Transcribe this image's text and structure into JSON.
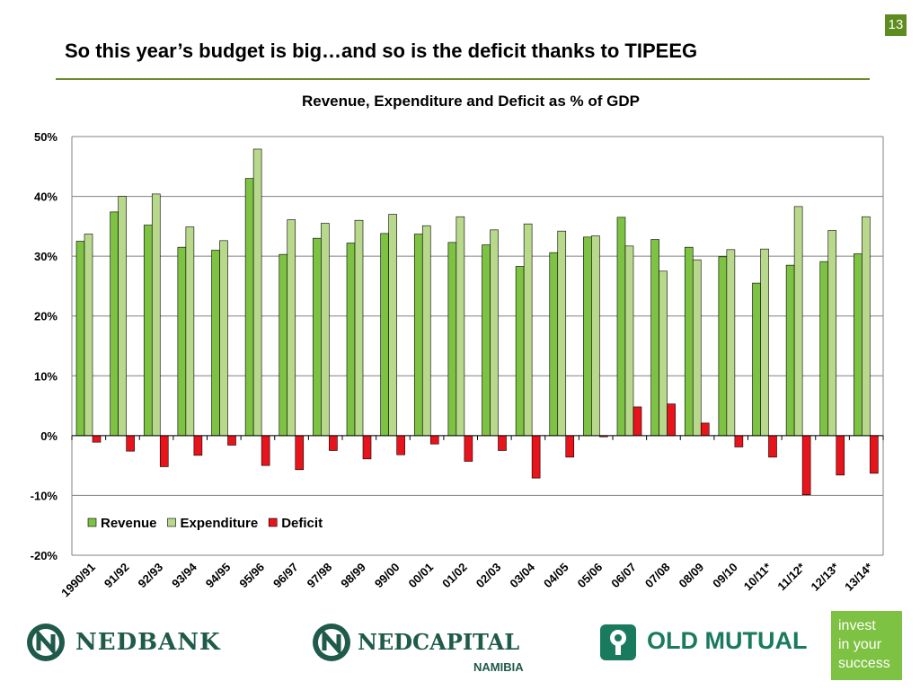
{
  "page": {
    "number": "13",
    "title": "So this year’s budget is big…and so is the deficit thanks to TIPEEG"
  },
  "colors": {
    "revenue": "#7dc242",
    "expenditure": "#b8d88c",
    "deficit": "#e8141b",
    "accent": "#5e8c1e"
  },
  "chart_data": {
    "type": "bar",
    "title": "Revenue, Expenditure and Deficit as % of GDP",
    "xlabel": "",
    "ylabel": "",
    "ylim": [
      -20,
      50
    ],
    "yticks": [
      -20,
      -10,
      0,
      10,
      20,
      30,
      40,
      50
    ],
    "ytick_labels": [
      "-20%",
      "-10%",
      "0%",
      "10%",
      "20%",
      "30%",
      "40%",
      "50%"
    ],
    "grid": true,
    "legend_position": "lower-left",
    "categories": [
      "1990/91",
      "91/92",
      "92/93",
      "93/94",
      "94/95",
      "95/96",
      "96/97",
      "97/98",
      "98/99",
      "99/00",
      "00/01",
      "01/02",
      "02/03",
      "03/04",
      "04/05",
      "05/06",
      "06/07",
      "07/08",
      "08/09",
      "09/10",
      "10/11*",
      "11/12*",
      "12/13*",
      "13/14*"
    ],
    "series": [
      {
        "name": "Revenue",
        "color": "#7dc242",
        "values": [
          32.5,
          37.4,
          35.2,
          31.5,
          31.0,
          43.0,
          30.3,
          33.0,
          32.2,
          33.8,
          33.7,
          32.3,
          31.9,
          28.3,
          30.6,
          33.2,
          36.5,
          32.8,
          31.5,
          29.9,
          25.5,
          28.5,
          29.1,
          30.4
        ]
      },
      {
        "name": "Expenditure",
        "color": "#b8d88c",
        "values": [
          33.7,
          40.0,
          40.4,
          34.9,
          32.6,
          47.9,
          36.1,
          35.5,
          36.0,
          37.0,
          35.1,
          36.6,
          34.4,
          35.4,
          34.2,
          33.4,
          31.7,
          27.5,
          29.4,
          31.1,
          31.2,
          38.3,
          34.3,
          36.6
        ]
      },
      {
        "name": "Deficit",
        "color": "#e8141b",
        "values": [
          -1.1,
          -2.6,
          -5.2,
          -3.3,
          -1.6,
          -5.0,
          -5.7,
          -2.5,
          -3.9,
          -3.2,
          -1.4,
          -4.3,
          -2.5,
          -7.1,
          -3.6,
          -0.2,
          4.8,
          5.3,
          2.1,
          -1.9,
          -3.6,
          -9.9,
          -6.6,
          -6.3
        ]
      }
    ]
  },
  "footer": {
    "nedbank": "NEDBANK",
    "nedcapital": "NEDCAPITAL",
    "nedcapital_sub": "NAMIBIA",
    "oldmutual": "OLD MUTUAL",
    "invest": [
      "invest",
      "in your",
      "success"
    ]
  }
}
